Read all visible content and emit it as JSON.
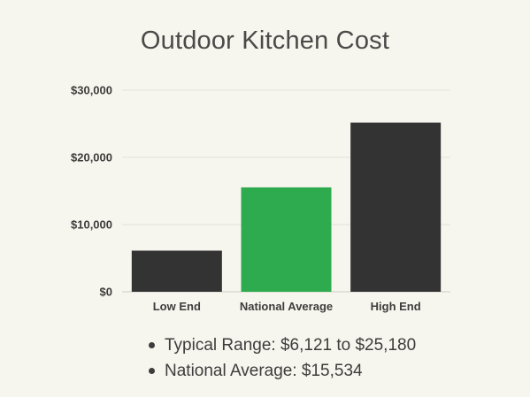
{
  "chart_data": {
    "type": "bar",
    "title": "Outdoor Kitchen Cost",
    "categories": [
      "Low End",
      "National Average",
      "High End"
    ],
    "values": [
      6121,
      15534,
      25180
    ],
    "bar_colors": [
      "#333333",
      "#2eab4e",
      "#333333"
    ],
    "ylim": [
      0,
      30000
    ],
    "yticks": [
      0,
      10000,
      20000,
      30000
    ],
    "ytick_labels": [
      "$0",
      "$10,000",
      "$20,000",
      "$30,000"
    ],
    "xlabel": "",
    "ylabel": "",
    "grid": true
  },
  "notes": [
    "Typical Range: $6,121 to $25,180",
    "National Average: $15,534"
  ],
  "colors": {
    "background": "#f6f5ee",
    "gridline": "#e3e2d9",
    "text": "#3d3d3b"
  }
}
